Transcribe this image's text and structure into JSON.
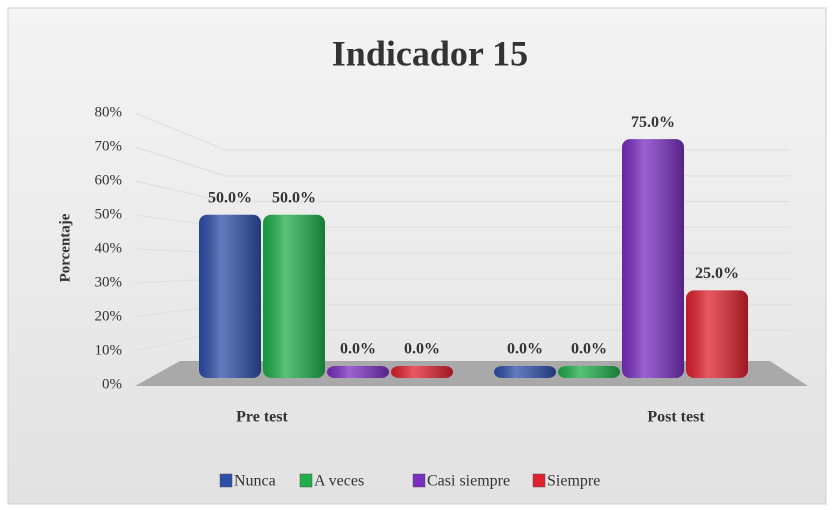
{
  "chart_data": {
    "type": "bar3d",
    "title": "Indicador 15",
    "y_label": "Porcentaje",
    "categories": [
      "Pre test",
      "Post test"
    ],
    "series": [
      {
        "name": "Nunca",
        "color": "#2e4fa8",
        "values": [
          50,
          0
        ],
        "value_labels": [
          "50.0%",
          "0.0%"
        ]
      },
      {
        "name": "A veces",
        "color": "#1fae4a",
        "values": [
          50,
          0
        ],
        "value_labels": [
          "50.0%",
          "0.0%"
        ]
      },
      {
        "name": "Casi siempre",
        "color": "#7a2ec0",
        "values": [
          0,
          75
        ],
        "value_labels": [
          "0.0%",
          "75.0%"
        ]
      },
      {
        "name": "Siempre",
        "color": "#e0202e",
        "values": [
          0,
          25
        ],
        "value_labels": [
          "0.0%",
          "25.0%"
        ]
      }
    ],
    "ylim": [
      0,
      80
    ],
    "yticks": [
      {
        "value": 0,
        "label": "0%"
      },
      {
        "value": 10,
        "label": "10%"
      },
      {
        "value": 20,
        "label": "20%"
      },
      {
        "value": 30,
        "label": "30%"
      },
      {
        "value": 40,
        "label": "40%"
      },
      {
        "value": 50,
        "label": "50%"
      },
      {
        "value": 60,
        "label": "60%"
      },
      {
        "value": 70,
        "label": "70%"
      },
      {
        "value": 80,
        "label": "80%"
      }
    ],
    "grid": true,
    "legend": "bottom"
  }
}
